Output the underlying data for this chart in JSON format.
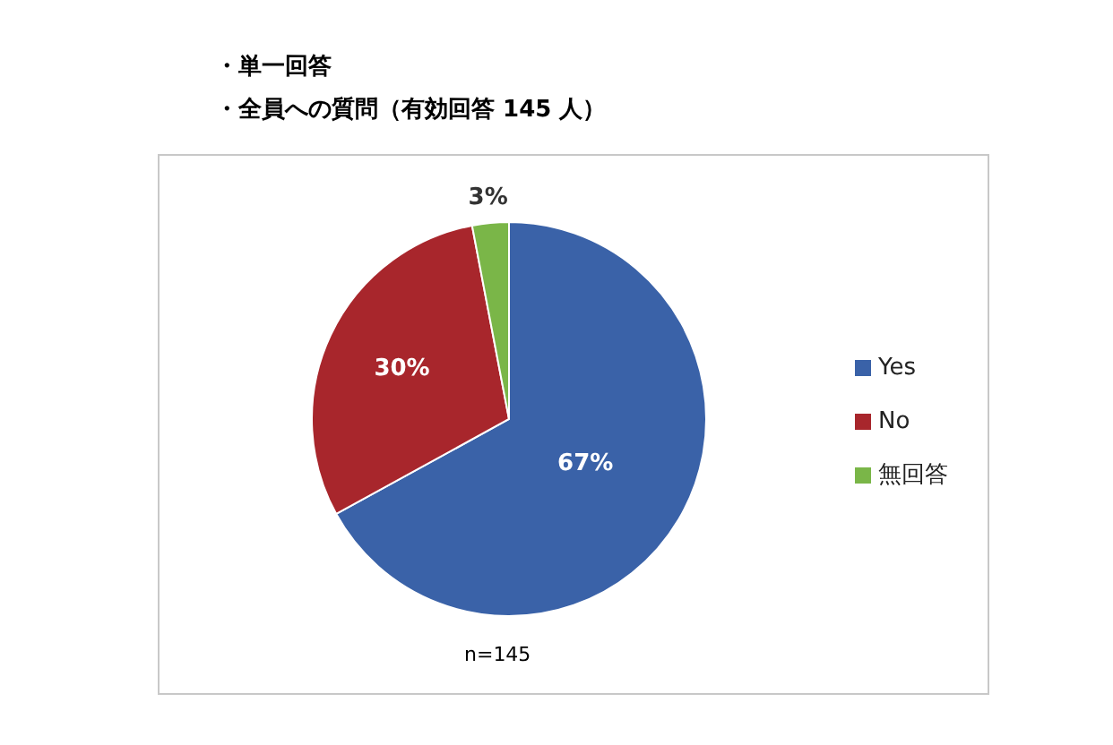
{
  "chart_data": {
    "type": "pie",
    "title": "・単一回答",
    "subtitle": "・全員への質問（有効回答 145 人）",
    "categories": [
      "Yes",
      "No",
      "無回答"
    ],
    "values": [
      67,
      30,
      3
    ],
    "colors": [
      "#3a62a8",
      "#a8262c",
      "#7ab648"
    ],
    "value_labels": [
      "67%",
      "30%",
      "3%"
    ],
    "legend": "right",
    "annotations": [
      "n=145"
    ]
  }
}
